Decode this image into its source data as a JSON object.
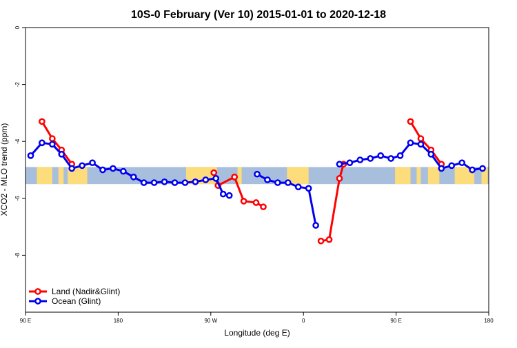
{
  "chart_data": {
    "type": "line",
    "title": "10S-0 February (Ver 10)   2015-01-01 to 2020-12-18",
    "xlabel": "Longitude (deg E)",
    "ylabel": "XCO2 - MLO trend (ppm)",
    "xlim": [
      90,
      540
    ],
    "ylim": [
      -10,
      0
    ],
    "x_ticks": [
      {
        "value": 90,
        "label": "90 E"
      },
      {
        "value": 180,
        "label": "180"
      },
      {
        "value": 270,
        "label": "90 W"
      },
      {
        "value": 360,
        "label": "0"
      },
      {
        "value": 450,
        "label": "90 E"
      },
      {
        "value": 540,
        "label": "180"
      }
    ],
    "y_ticks": [
      {
        "value": 0,
        "label": "0"
      },
      {
        "value": -2,
        "label": "-2"
      },
      {
        "value": -4,
        "label": "-4"
      },
      {
        "value": -6,
        "label": "-6"
      },
      {
        "value": -8,
        "label": "-8"
      }
    ],
    "map_strip": {
      "y_range": [
        -5.5,
        -4.9
      ],
      "ocean_color": "#a8bedd",
      "land_color": "#fddc7c",
      "land_segments": [
        [
          101,
          116
        ],
        [
          122,
          127
        ],
        [
          131,
          150
        ],
        [
          246,
          276
        ],
        [
          296,
          300
        ],
        [
          344,
          365
        ],
        [
          449,
          464
        ],
        [
          470,
          474
        ],
        [
          481,
          492
        ],
        [
          507,
          526
        ],
        [
          533,
          539
        ]
      ]
    },
    "legend_position": "bottom-left",
    "series": [
      {
        "name": "Land (Nadir&Glint)",
        "color": "#ff0000",
        "segments": [
          [
            [
              106,
              -3.3
            ],
            [
              116,
              -3.9
            ],
            [
              125,
              -4.3
            ],
            [
              135,
              -4.8
            ]
          ],
          [
            [
              273,
              -5.1
            ],
            [
              277,
              -5.55
            ],
            [
              293,
              -5.25
            ],
            [
              302,
              -6.1
            ],
            [
              314,
              -6.15
            ],
            [
              321,
              -6.3
            ]
          ],
          [
            [
              377,
              -7.5
            ],
            [
              385,
              -7.45
            ],
            [
              395,
              -5.3
            ],
            [
              399,
              -4.8
            ]
          ],
          [
            [
              464,
              -3.3
            ],
            [
              474,
              -3.9
            ],
            [
              484,
              -4.3
            ],
            [
              494,
              -4.8
            ]
          ]
        ]
      },
      {
        "name": "Ocean (Glint)",
        "color": "#0000ee",
        "segments": [
          [
            [
              95,
              -4.5
            ],
            [
              106,
              -4.05
            ],
            [
              116,
              -4.1
            ],
            [
              125,
              -4.45
            ],
            [
              135,
              -4.95
            ],
            [
              145,
              -4.85
            ],
            [
              155,
              -4.75
            ],
            [
              165,
              -5.0
            ],
            [
              175,
              -4.95
            ],
            [
              185,
              -5.05
            ],
            [
              195,
              -5.25
            ],
            [
              205,
              -5.45
            ],
            [
              215,
              -5.45
            ],
            [
              225,
              -5.42
            ],
            [
              235,
              -5.45
            ],
            [
              245,
              -5.45
            ],
            [
              255,
              -5.42
            ],
            [
              265,
              -5.35
            ],
            [
              275,
              -5.3
            ],
            [
              282,
              -5.85
            ],
            [
              288,
              -5.9
            ]
          ],
          [
            [
              315,
              -5.15
            ],
            [
              325,
              -5.35
            ],
            [
              335,
              -5.45
            ],
            [
              345,
              -5.45
            ],
            [
              355,
              -5.6
            ],
            [
              365,
              -5.65
            ],
            [
              372,
              -6.95
            ]
          ],
          [
            [
              395,
              -4.8
            ],
            [
              405,
              -4.75
            ],
            [
              415,
              -4.65
            ],
            [
              425,
              -4.6
            ],
            [
              435,
              -4.5
            ],
            [
              445,
              -4.6
            ],
            [
              454,
              -4.5
            ],
            [
              464,
              -4.05
            ],
            [
              474,
              -4.1
            ],
            [
              484,
              -4.45
            ],
            [
              494,
              -4.95
            ],
            [
              504,
              -4.85
            ],
            [
              514,
              -4.75
            ],
            [
              524,
              -5.0
            ],
            [
              534,
              -4.95
            ]
          ]
        ]
      }
    ]
  }
}
